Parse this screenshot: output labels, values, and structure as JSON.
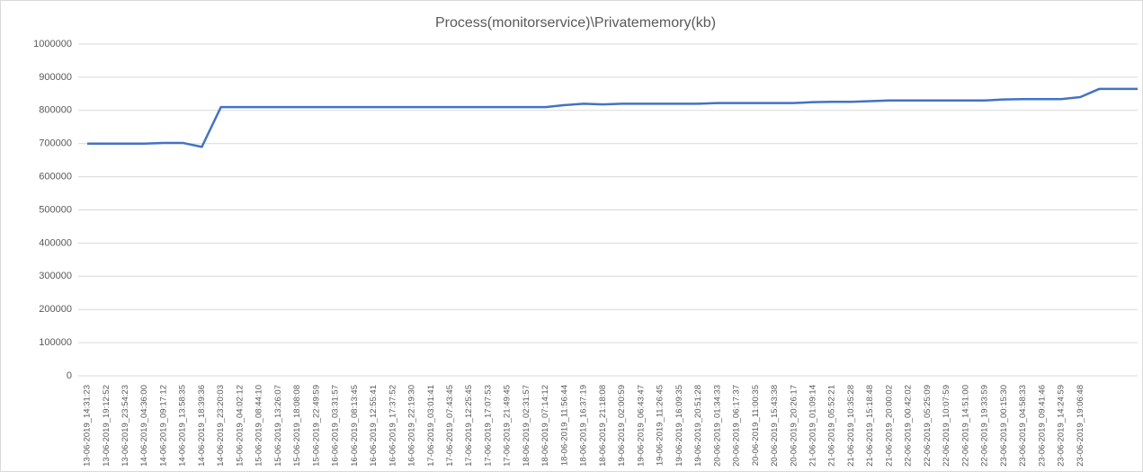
{
  "chart_data": {
    "type": "line",
    "title": "Process(monitorservice)\\Privatememory(kb)",
    "categories": [
      "13-06-2019_14:31:23",
      "13-06-2019_19:12:52",
      "13-06-2019_23:54:23",
      "14-06-2019_04:36:00",
      "14-06-2019_09:17:12",
      "14-06-2019_13:58:35",
      "14-06-2019_18:39:36",
      "14-06-2019_23:20:03",
      "15-06-2019_04:02:12",
      "15-06-2019_08:44:10",
      "15-06-2019_13:26:07",
      "15-06-2019_18:08:08",
      "15-06-2019_22:49:59",
      "16-06-2019_03:31:57",
      "16-06-2019_08:13:45",
      "16-06-2019_12:55:41",
      "16-06-2019_17:37:52",
      "16-06-2019_22:19:30",
      "17-06-2019_03:01:41",
      "17-06-2019_07:43:45",
      "17-06-2019_12:25:45",
      "17-06-2019_17:07:53",
      "17-06-2019_21:49:45",
      "18-06-2019_02:31:57",
      "18-06-2019_07:14:12",
      "18-06-2019_11:56:44",
      "18-06-2019_16:37:19",
      "18-06-2019_21:18:08",
      "19-06-2019_02:00:59",
      "19-06-2019_06:43:47",
      "19-06-2019_11:26:45",
      "19-06-2019_16:09:35",
      "19-06-2019_20:51:28",
      "20-06-2019_01:34:33",
      "20-06-2019_06:17:37",
      "20-06-2019_11:00:35",
      "20-06-2019_15:43:38",
      "20-06-2019_20:26:17",
      "21-06-2019_01:09:14",
      "21-06-2019_05:52:21",
      "21-06-2019_10:35:28",
      "21-06-2019_15:18:48",
      "21-06-2019_20:00:02",
      "22-06-2019_00:42:02",
      "22-06-2019_05:25:09",
      "22-06-2019_10:07:59",
      "22-06-2019_14:51:00",
      "22-06-2019_19:33:59",
      "23-06-2019_00:15:30",
      "23-06-2019_04:58:33",
      "23-06-2019_09:41:46",
      "23-06-2019_14:24:59",
      "23-06-2019_19:06:48",
      null,
      null,
      null
    ],
    "values": [
      700000,
      700000,
      700000,
      700000,
      702000,
      702000,
      690000,
      810000,
      810000,
      810000,
      810000,
      810000,
      810000,
      810000,
      810000,
      810000,
      810000,
      810000,
      810000,
      810000,
      810000,
      810000,
      810000,
      810000,
      810000,
      816000,
      820000,
      818000,
      820000,
      820000,
      820000,
      820000,
      820000,
      822000,
      822000,
      822000,
      822000,
      822000,
      825000,
      826000,
      826000,
      828000,
      830000,
      830000,
      830000,
      830000,
      830000,
      830000,
      833000,
      834000,
      834000,
      834000,
      840000,
      865000,
      865000,
      865000
    ],
    "color": "#4472c4",
    "ylim": [
      0,
      1000000
    ],
    "yticks": [
      0,
      100000,
      200000,
      300000,
      400000,
      500000,
      600000,
      700000,
      800000,
      900000,
      1000000
    ],
    "grid": true
  }
}
